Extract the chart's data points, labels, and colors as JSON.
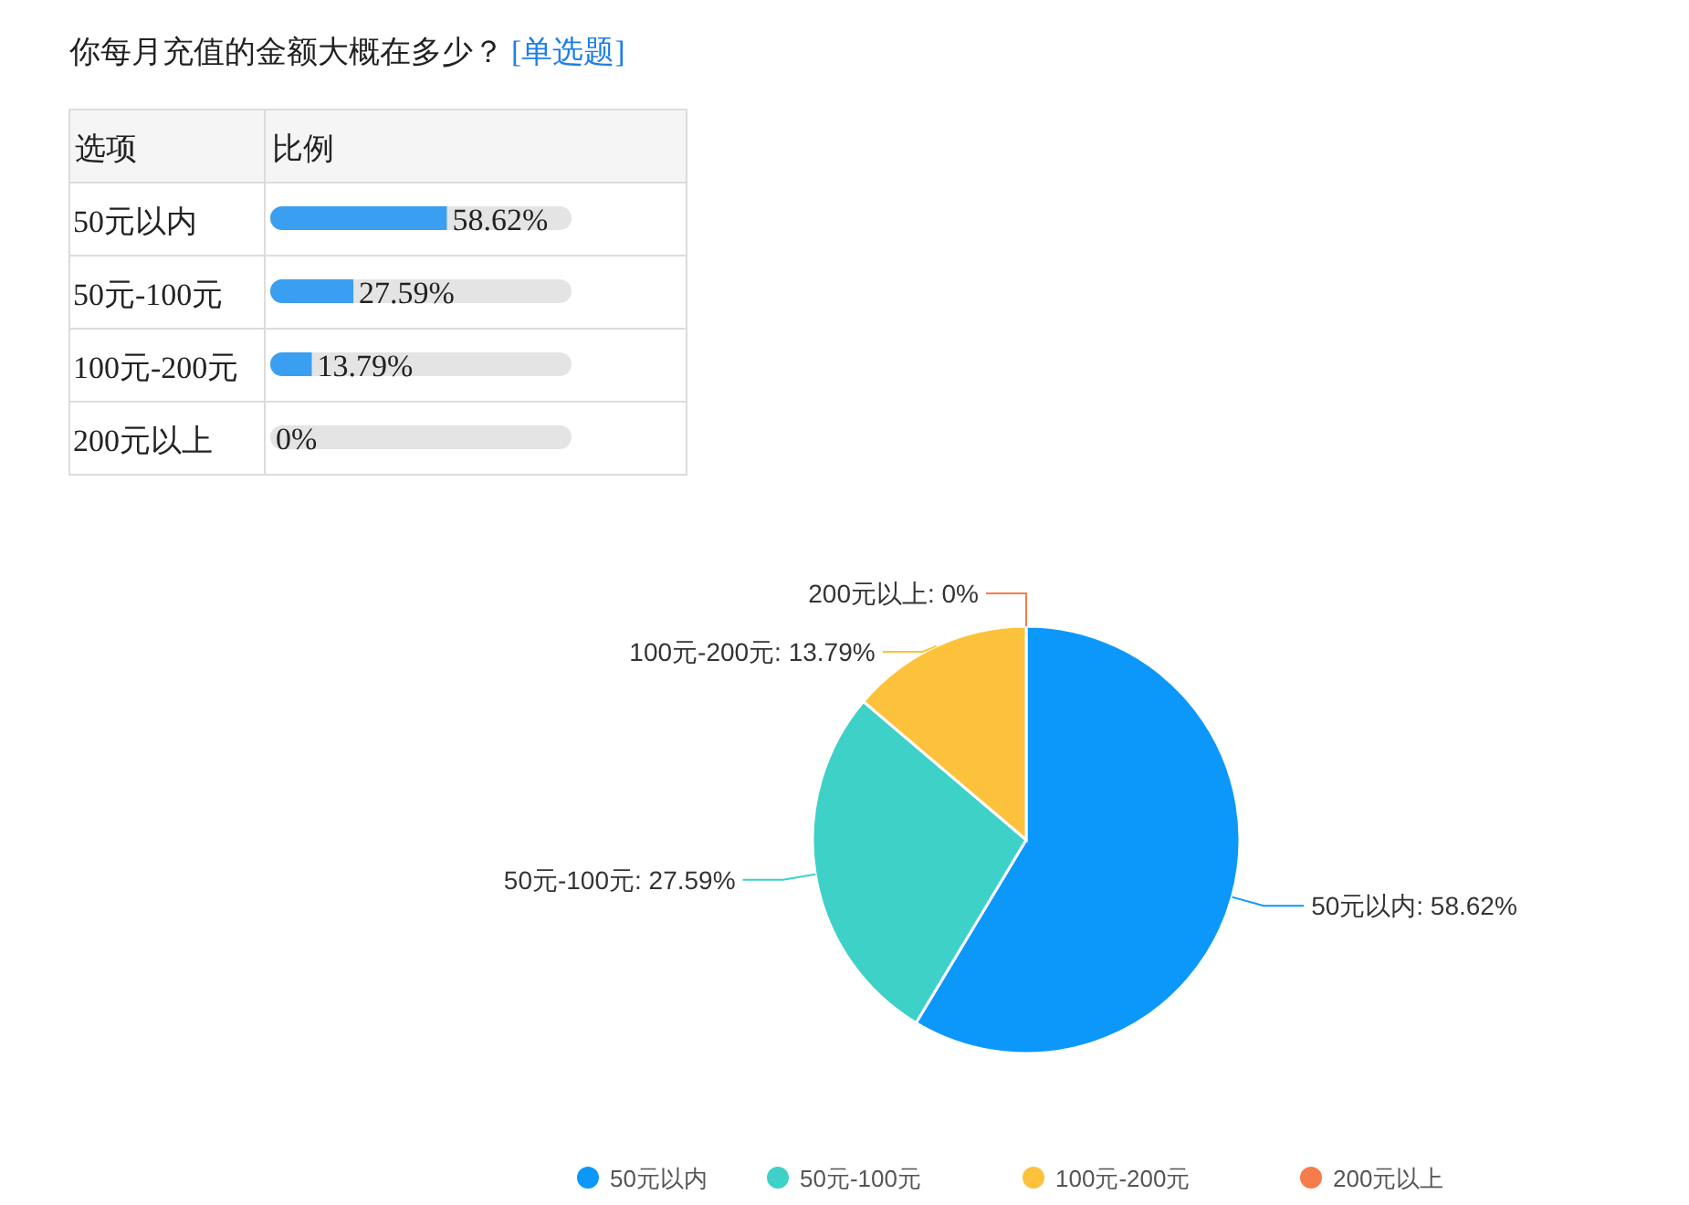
{
  "chart_data": [
    {
      "type": "bar",
      "orientation": "horizontal",
      "title": "你每月充值的金额大概在多少？",
      "annotations": [
        "[单选题]"
      ],
      "ylabel": "选项",
      "xlabel": "比例",
      "categories": [
        "50元以内",
        "50元-100元",
        "100元-200元",
        "200元以上"
      ],
      "values": [
        58.62,
        27.59,
        13.79,
        0
      ],
      "color": "#3a9ff0",
      "grid": true,
      "value_labels": [
        "58.62%",
        "27.59%",
        "13.79%",
        "0%"
      ]
    },
    {
      "type": "pie",
      "categories": [
        "50元以内",
        "50元-100元",
        "100元-200元",
        "200元以上"
      ],
      "values": [
        58.62,
        27.59,
        13.79,
        0
      ],
      "colors": [
        "#0c98fb",
        "#3dd1c8",
        "#fcc23c",
        "#f67c4c"
      ],
      "value_labels": [
        "50元以内: 58.62%",
        "50元-100元: 27.59%",
        "100元-200元: 13.79%",
        "200元以上: 0%"
      ],
      "legend": "bottom"
    }
  ]
}
